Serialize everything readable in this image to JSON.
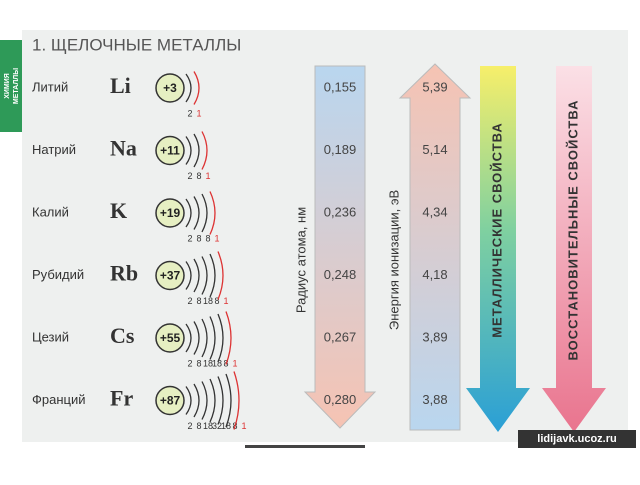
{
  "title": "1. ЩЕЛОЧНЫЕ МЕТАЛЛЫ",
  "side_label": [
    "ХИМИЯ",
    "МЕТАЛЛЫ"
  ],
  "rows": [
    {
      "name": "Литий",
      "symbol": "Li",
      "charge": "+3",
      "shells": [
        "2",
        "1"
      ],
      "radius": "0,155",
      "ionization": "5,39"
    },
    {
      "name": "Натрий",
      "symbol": "Na",
      "charge": "+11",
      "shells": [
        "2",
        "8",
        "1"
      ],
      "radius": "0,189",
      "ionization": "5,14"
    },
    {
      "name": "Калий",
      "symbol": "K",
      "charge": "+19",
      "shells": [
        "2",
        "8",
        "8",
        "1"
      ],
      "radius": "0,236",
      "ionization": "4,34"
    },
    {
      "name": "Рубидий",
      "symbol": "Rb",
      "charge": "+37",
      "shells": [
        "2",
        "8",
        "18",
        "8",
        "1"
      ],
      "radius": "0,248",
      "ionization": "4,18"
    },
    {
      "name": "Цезий",
      "symbol": "Cs",
      "charge": "+55",
      "shells": [
        "2",
        "8",
        "18",
        "18",
        "8",
        "1"
      ],
      "radius": "0,267",
      "ionization": "3,89"
    },
    {
      "name": "Франций",
      "symbol": "Fr",
      "charge": "+87",
      "shells": [
        "2",
        "8",
        "18",
        "32",
        "18",
        "8",
        "1"
      ],
      "radius": "0,280",
      "ionization": "3,88"
    }
  ],
  "arrows": {
    "radius": "Радиус атома, нм",
    "ionization": "Энергия ионизации, эВ",
    "metallic": "МЕТАЛЛИЧЕСКИЕ СВОЙСТВА",
    "reducing": "ВОССТАНОВИТЕЛЬНЫЕ СВОЙСТВА"
  },
  "watermark": "lidijavk.ucoz.ru"
}
